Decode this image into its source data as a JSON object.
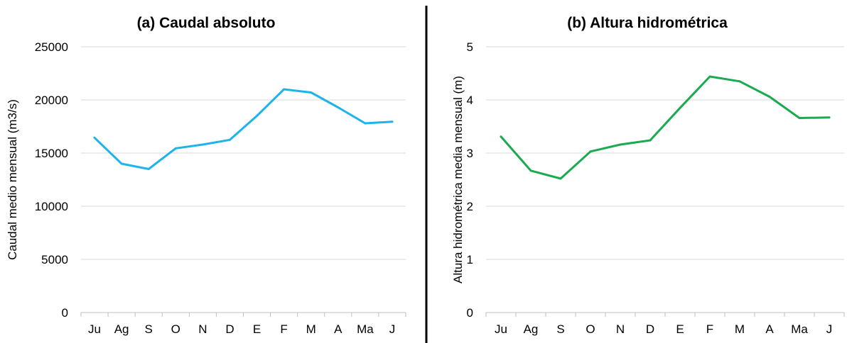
{
  "chart_data": [
    {
      "type": "line",
      "title": "(a) Caudal absoluto",
      "xlabel": "",
      "ylabel": "Caudal medio mensual (m3/s)",
      "categories": [
        "Ju",
        "Ag",
        "S",
        "O",
        "N",
        "D",
        "E",
        "F",
        "M",
        "A",
        "Ma",
        "J"
      ],
      "ylim": [
        0,
        25000
      ],
      "yticks": [
        "0",
        "5000",
        "10000",
        "15000",
        "20000",
        "25000"
      ],
      "grid": true,
      "color": "#1fb4e9",
      "series": [
        {
          "values": [
            16450,
            14000,
            13500,
            15450,
            15800,
            16250,
            18500,
            21000,
            20700,
            19300,
            17800,
            17950
          ]
        }
      ]
    },
    {
      "type": "line",
      "title": "(b) Altura hidrométrica",
      "xlabel": "",
      "ylabel": "Altura hidrométrica media mensual (m)",
      "categories": [
        "Ju",
        "Ag",
        "S",
        "O",
        "N",
        "D",
        "E",
        "F",
        "M",
        "A",
        "Ma",
        "J"
      ],
      "ylim": [
        0,
        5
      ],
      "yticks": [
        "0",
        "1",
        "2",
        "3",
        "4",
        "5"
      ],
      "grid": true,
      "color": "#1aaa50",
      "series": [
        {
          "values": [
            3.31,
            2.67,
            2.52,
            3.03,
            3.16,
            3.24,
            3.85,
            4.44,
            4.35,
            4.06,
            3.66,
            3.67
          ]
        }
      ]
    }
  ]
}
